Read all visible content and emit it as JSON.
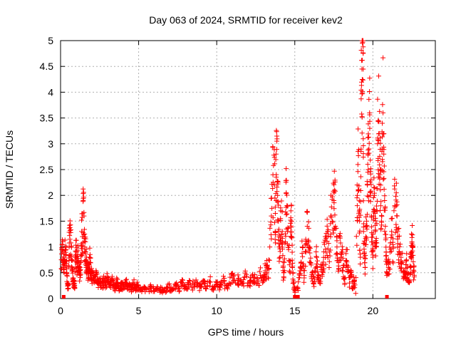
{
  "chart_data": {
    "type": "scatter",
    "title": "Day 063 of 2024, SRMTID for receiver kev2",
    "xlabel": "GPS time / hours",
    "ylabel": "SRMTID / TECUs",
    "xlim": [
      0,
      24
    ],
    "ylim": [
      0,
      5
    ],
    "xticks": [
      0,
      5,
      10,
      15,
      20
    ],
    "yticks": [
      0,
      0.5,
      1,
      1.5,
      2,
      2.5,
      3,
      3.5,
      4,
      4.5,
      5
    ],
    "ytick_labels": [
      "0",
      "0.5",
      "1",
      "1.5",
      "2",
      "2.5",
      "3",
      "3.5",
      "4",
      "4.5",
      "5"
    ],
    "grid": true,
    "marker": "+",
    "series": [
      {
        "name": "SRMTID",
        "color": "#ff0000",
        "points": [
          [
            0.05,
            0.58
          ],
          [
            0.1,
            1.05
          ],
          [
            0.15,
            0.9
          ],
          [
            0.2,
            0.6
          ],
          [
            0.25,
            0.72
          ],
          [
            0.3,
            0.95
          ],
          [
            0.35,
            0.85
          ],
          [
            0.4,
            0.5
          ],
          [
            0.45,
            0.3
          ],
          [
            0.5,
            0.2
          ],
          [
            0.55,
            1.0
          ],
          [
            0.6,
            1.15
          ],
          [
            0.65,
            1.28
          ],
          [
            0.7,
            0.75
          ],
          [
            0.75,
            0.55
          ],
          [
            0.8,
            0.4
          ],
          [
            0.85,
            0.3
          ],
          [
            0.9,
            0.25
          ],
          [
            0.95,
            0.8
          ],
          [
            1.0,
            0.9
          ],
          [
            1.05,
            0.7
          ],
          [
            1.1,
            0.85
          ],
          [
            1.15,
            0.6
          ],
          [
            1.2,
            0.5
          ],
          [
            1.25,
            0.45
          ],
          [
            1.3,
            0.7
          ],
          [
            1.35,
            1.3
          ],
          [
            1.4,
            1.2
          ],
          [
            1.45,
            1.9
          ],
          [
            1.5,
            1.6
          ],
          [
            1.55,
            1.0
          ],
          [
            1.6,
            0.9
          ],
          [
            1.65,
            0.75
          ],
          [
            1.7,
            0.6
          ],
          [
            1.75,
            0.5
          ],
          [
            1.8,
            0.55
          ],
          [
            1.85,
            0.8
          ],
          [
            1.9,
            0.7
          ],
          [
            1.95,
            0.4
          ],
          [
            2.0,
            0.45
          ],
          [
            2.1,
            0.4
          ],
          [
            2.2,
            0.35
          ],
          [
            2.3,
            0.5
          ],
          [
            2.4,
            0.3
          ],
          [
            2.5,
            0.38
          ],
          [
            2.6,
            0.25
          ],
          [
            2.7,
            0.3
          ],
          [
            2.8,
            0.35
          ],
          [
            2.9,
            0.28
          ],
          [
            3.0,
            0.4
          ],
          [
            3.1,
            0.3
          ],
          [
            3.2,
            0.25
          ],
          [
            3.3,
            0.35
          ],
          [
            3.4,
            0.28
          ],
          [
            3.5,
            0.22
          ],
          [
            3.6,
            0.3
          ],
          [
            3.7,
            0.25
          ],
          [
            3.8,
            0.2
          ],
          [
            3.9,
            0.28
          ],
          [
            4.0,
            0.24
          ],
          [
            4.1,
            0.2
          ],
          [
            4.2,
            0.3
          ],
          [
            4.3,
            0.22
          ],
          [
            4.4,
            0.25
          ],
          [
            4.5,
            0.18
          ],
          [
            4.6,
            0.22
          ],
          [
            4.7,
            0.28
          ],
          [
            4.8,
            0.2
          ],
          [
            4.9,
            0.25
          ],
          [
            5.0,
            0.22
          ],
          [
            5.2,
            0.15
          ],
          [
            5.4,
            0.2
          ],
          [
            5.6,
            0.18
          ],
          [
            5.8,
            0.22
          ],
          [
            6.0,
            0.15
          ],
          [
            6.2,
            0.2
          ],
          [
            6.4,
            0.18
          ],
          [
            6.6,
            0.15
          ],
          [
            6.8,
            0.2
          ],
          [
            7.0,
            0.22
          ],
          [
            7.2,
            0.18
          ],
          [
            7.4,
            0.25
          ],
          [
            7.6,
            0.2
          ],
          [
            7.8,
            0.3
          ],
          [
            8.0,
            0.2
          ],
          [
            8.2,
            0.28
          ],
          [
            8.4,
            0.22
          ],
          [
            8.6,
            0.3
          ],
          [
            8.8,
            0.25
          ],
          [
            9.0,
            0.22
          ],
          [
            9.2,
            0.3
          ],
          [
            9.4,
            0.25
          ],
          [
            9.6,
            0.32
          ],
          [
            9.8,
            0.2
          ],
          [
            10.0,
            0.28
          ],
          [
            10.2,
            0.22
          ],
          [
            10.4,
            0.35
          ],
          [
            10.6,
            0.25
          ],
          [
            10.8,
            0.3
          ],
          [
            11.0,
            0.4
          ],
          [
            11.2,
            0.3
          ],
          [
            11.4,
            0.35
          ],
          [
            11.6,
            0.28
          ],
          [
            11.8,
            0.42
          ],
          [
            12.0,
            0.3
          ],
          [
            12.2,
            0.35
          ],
          [
            12.4,
            0.4
          ],
          [
            12.6,
            0.3
          ],
          [
            12.8,
            0.45
          ],
          [
            13.0,
            0.35
          ],
          [
            13.1,
            0.5
          ],
          [
            13.2,
            0.6
          ],
          [
            13.3,
            0.4
          ],
          [
            13.4,
            1.0
          ],
          [
            13.5,
            1.6
          ],
          [
            13.6,
            2.4
          ],
          [
            13.7,
            2.2
          ],
          [
            13.75,
            1.3
          ],
          [
            13.8,
            2.8
          ],
          [
            13.85,
            3.05
          ],
          [
            13.9,
            2.0
          ],
          [
            13.95,
            1.5
          ],
          [
            14.0,
            1.0
          ],
          [
            14.05,
            0.8
          ],
          [
            14.1,
            1.7
          ],
          [
            14.2,
            1.3
          ],
          [
            14.25,
            0.6
          ],
          [
            14.3,
            0.4
          ],
          [
            14.4,
            1.1
          ],
          [
            14.45,
            2.05
          ],
          [
            14.5,
            1.8
          ],
          [
            14.6,
            0.95
          ],
          [
            14.7,
            0.5
          ],
          [
            14.75,
            1.7
          ],
          [
            14.8,
            1.2
          ],
          [
            14.85,
            0.6
          ],
          [
            14.9,
            0.3
          ],
          [
            15.0,
            0.15
          ],
          [
            15.2,
            0.2
          ],
          [
            15.3,
            0.4
          ],
          [
            15.4,
            0.7
          ],
          [
            15.5,
            1.0
          ],
          [
            15.6,
            0.4
          ],
          [
            15.7,
            0.9
          ],
          [
            15.8,
            1.4
          ],
          [
            15.9,
            1.1
          ],
          [
            16.0,
            0.7
          ],
          [
            16.1,
            0.5
          ],
          [
            16.2,
            0.3
          ],
          [
            16.3,
            0.5
          ],
          [
            16.4,
            0.8
          ],
          [
            16.5,
            0.4
          ],
          [
            16.6,
            0.3
          ],
          [
            16.7,
            0.6
          ],
          [
            16.8,
            0.5
          ],
          [
            16.9,
            1.05
          ],
          [
            17.0,
            0.9
          ],
          [
            17.1,
            1.3
          ],
          [
            17.2,
            0.6
          ],
          [
            17.3,
            1.6
          ],
          [
            17.4,
            1.5
          ],
          [
            17.5,
            1.9
          ],
          [
            17.55,
            2.1
          ],
          [
            17.6,
            1.4
          ],
          [
            17.7,
            1.0
          ],
          [
            17.8,
            0.7
          ],
          [
            17.9,
            1.2
          ],
          [
            18.0,
            0.9
          ],
          [
            18.1,
            0.6
          ],
          [
            18.2,
            0.4
          ],
          [
            18.3,
            0.95
          ],
          [
            18.4,
            0.6
          ],
          [
            18.5,
            0.3
          ],
          [
            18.6,
            0.5
          ],
          [
            18.7,
            0.2
          ],
          [
            18.8,
            0.35
          ],
          [
            18.9,
            0.1
          ],
          [
            19.0,
            1.8
          ],
          [
            19.05,
            2.85
          ],
          [
            19.1,
            2.1
          ],
          [
            19.15,
            1.5
          ],
          [
            19.2,
            0.8
          ],
          [
            19.25,
            3.87
          ],
          [
            19.3,
            4.45
          ],
          [
            19.32,
            4.62
          ],
          [
            19.35,
            4.97
          ],
          [
            19.38,
            4.88
          ],
          [
            19.4,
            1.3
          ],
          [
            19.45,
            0.9
          ],
          [
            19.5,
            0.6
          ],
          [
            19.55,
            1.2
          ],
          [
            19.6,
            1.5
          ],
          [
            19.65,
            2.2
          ],
          [
            19.7,
            2.5
          ],
          [
            19.75,
            2.9
          ],
          [
            19.8,
            3.3
          ],
          [
            19.85,
            2.0
          ],
          [
            19.9,
            1.6
          ],
          [
            19.95,
            1.1
          ],
          [
            20.0,
            0.8
          ],
          [
            20.05,
            1.6
          ],
          [
            20.1,
            2.0
          ],
          [
            20.15,
            1.3
          ],
          [
            20.2,
            1.0
          ],
          [
            20.25,
            1.7
          ],
          [
            20.3,
            3.0
          ],
          [
            20.35,
            3.45
          ],
          [
            20.4,
            3.2
          ],
          [
            20.45,
            2.4
          ],
          [
            20.5,
            2.2
          ],
          [
            20.55,
            1.5
          ],
          [
            20.6,
            2.9
          ],
          [
            20.65,
            3.6
          ],
          [
            20.7,
            2.8
          ],
          [
            20.75,
            1.9
          ],
          [
            20.8,
            1.4
          ],
          [
            20.85,
            0.9
          ],
          [
            20.9,
            0.5
          ],
          [
            21.0,
            0.6
          ],
          [
            21.1,
            0.9
          ],
          [
            21.2,
            1.3
          ],
          [
            21.3,
            1.0
          ],
          [
            21.4,
            1.8
          ],
          [
            21.5,
            2.05
          ],
          [
            21.55,
            1.6
          ],
          [
            21.6,
            1.2
          ],
          [
            21.7,
            0.9
          ],
          [
            21.8,
            0.8
          ],
          [
            21.9,
            0.7
          ],
          [
            22.0,
            0.5
          ],
          [
            22.1,
            0.4
          ],
          [
            22.15,
            0.75
          ],
          [
            22.2,
            0.5
          ],
          [
            22.3,
            0.35
          ],
          [
            22.4,
            0.6
          ],
          [
            22.45,
            0.9
          ],
          [
            22.5,
            1.1
          ],
          [
            22.55,
            1.0
          ],
          [
            22.6,
            0.55
          ],
          [
            22.65,
            0.45
          ]
        ]
      }
    ]
  }
}
